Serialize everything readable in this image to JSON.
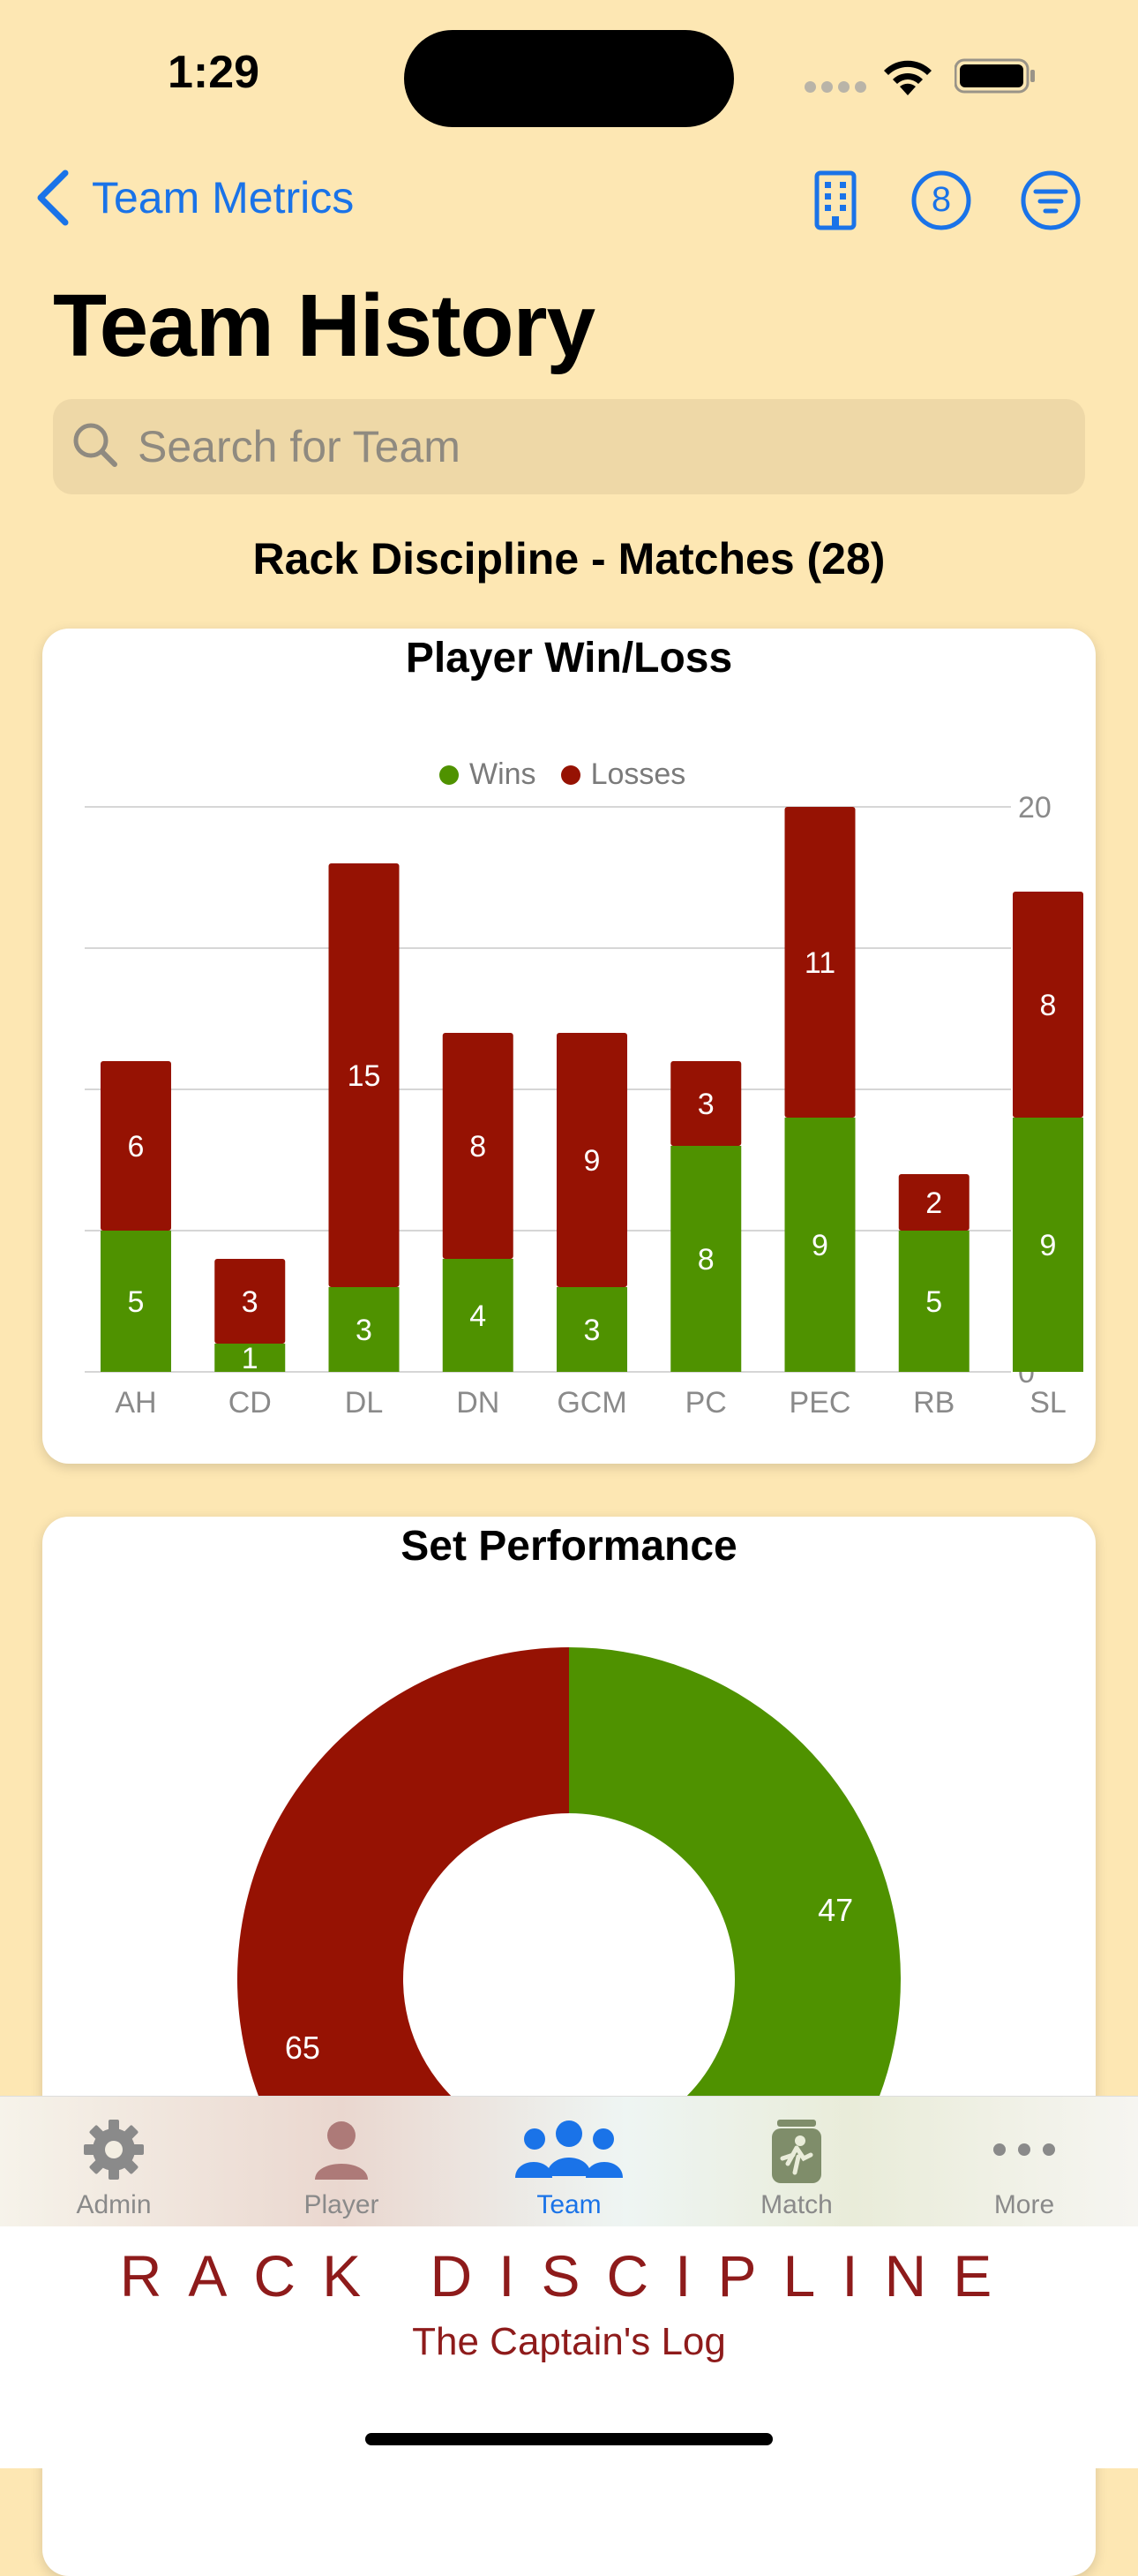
{
  "status_bar": {
    "time": "1:29"
  },
  "nav": {
    "back_label": "Team Metrics",
    "actions": [
      "building-icon",
      "number-8-circle-icon",
      "filter-circle-icon"
    ],
    "badge_number": "8"
  },
  "page": {
    "title": "Team History"
  },
  "search": {
    "placeholder": "Search for Team"
  },
  "team": {
    "heading": "Rack Discipline - Matches (28)"
  },
  "colors": {
    "wins": "#4f9200",
    "losses": "#961203",
    "accent": "#1a73e8",
    "background": "#fde7b3"
  },
  "chart_data": [
    {
      "type": "bar",
      "stacked": true,
      "title": "Player Win/Loss",
      "categories": [
        "AH",
        "CD",
        "DL",
        "DN",
        "GCM",
        "PC",
        "PEC",
        "RB",
        "SL"
      ],
      "series": [
        {
          "name": "Wins",
          "values": [
            5,
            1,
            3,
            4,
            3,
            8,
            9,
            5,
            9
          ]
        },
        {
          "name": "Losses",
          "values": [
            6,
            3,
            15,
            8,
            9,
            3,
            11,
            2,
            8
          ]
        }
      ],
      "ylim": [
        0,
        20
      ],
      "yticks": [
        "0",
        "5",
        "10",
        "15",
        "20"
      ],
      "legend": "top-center",
      "grid": true
    },
    {
      "type": "pie",
      "donut": true,
      "title": "Set Performance",
      "slices": [
        {
          "name": "Wins",
          "value": 47
        },
        {
          "name": "Losses",
          "value": 65
        }
      ]
    }
  ],
  "tabs": [
    {
      "label": "Admin",
      "icon": "gear-icon",
      "active": false
    },
    {
      "label": "Player",
      "icon": "person-icon",
      "active": false
    },
    {
      "label": "Team",
      "icon": "people-icon",
      "active": true
    },
    {
      "label": "Match",
      "icon": "scoreboard-icon",
      "active": false
    },
    {
      "label": "More",
      "icon": "ellipsis-icon",
      "active": false
    }
  ],
  "footer": {
    "brand": "RACK DISCIPLINE",
    "tagline": "The Captain's Log"
  }
}
